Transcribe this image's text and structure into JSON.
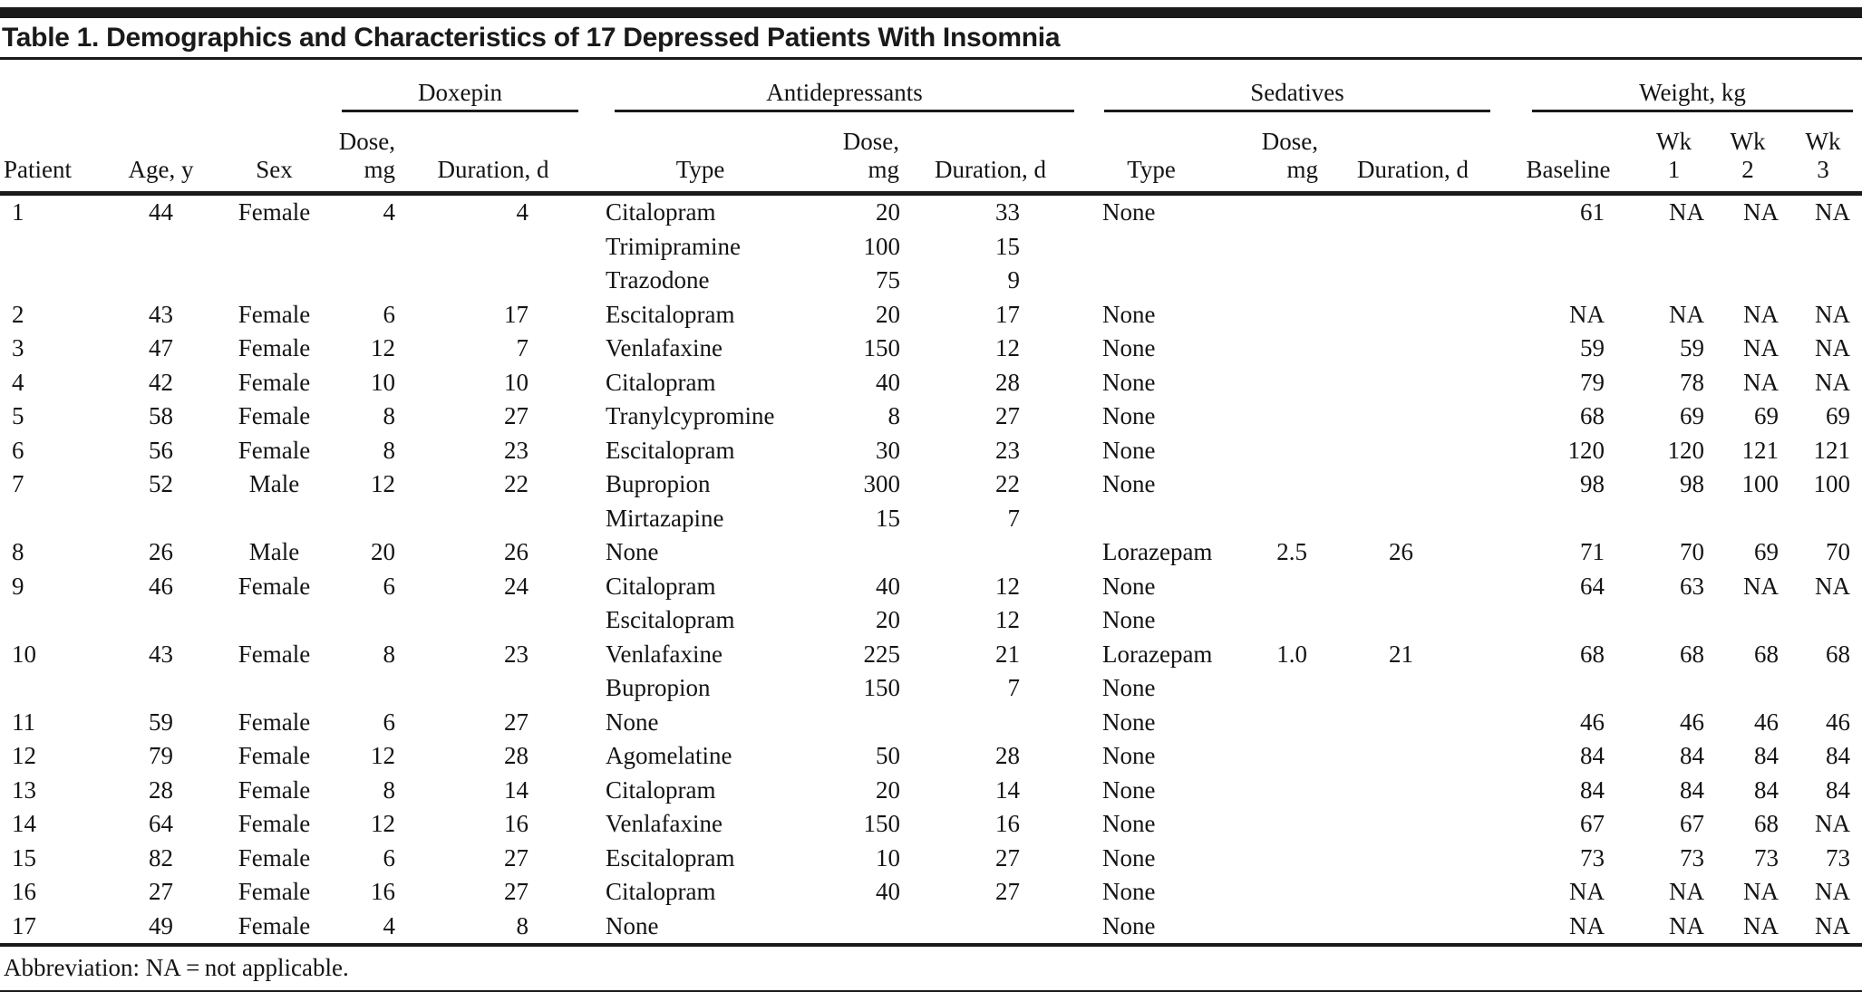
{
  "title": "Table 1. Demographics and Characteristics of 17 Depressed Patients With Insomnia",
  "footnote": "Abbreviation: NA = not applicable.",
  "colors": {
    "rule": "#1a1a1a",
    "text": "#141414"
  },
  "table": {
    "groups": [
      {
        "label": "",
        "span": 3
      },
      {
        "label": "Doxepin",
        "span": 2
      },
      {
        "label": "Antidepressants",
        "span": 3
      },
      {
        "label": "Sedatives",
        "span": 3
      },
      {
        "label": "Weight, kg",
        "span": 4
      }
    ],
    "columns": [
      "Patient",
      "Age, y",
      "Sex",
      "Dose,\nmg",
      "Duration, d",
      "Type",
      "Dose,\nmg",
      "Duration, d",
      "Type",
      "Dose,\nmg",
      "Duration, d",
      "Baseline",
      "Wk\n1",
      "Wk\n2",
      "Wk\n3"
    ],
    "rows": [
      [
        "1",
        "44",
        "Female",
        "4",
        "4",
        "Citalopram",
        "20",
        "33",
        "None",
        "",
        "",
        "61",
        "NA",
        "NA",
        "NA"
      ],
      [
        "",
        "",
        "",
        "",
        "",
        "Trimipramine",
        "100",
        "15",
        "",
        "",
        "",
        "",
        "",
        "",
        ""
      ],
      [
        "",
        "",
        "",
        "",
        "",
        "Trazodone",
        "75",
        "9",
        "",
        "",
        "",
        "",
        "",
        "",
        ""
      ],
      [
        "2",
        "43",
        "Female",
        "6",
        "17",
        "Escitalopram",
        "20",
        "17",
        "None",
        "",
        "",
        "NA",
        "NA",
        "NA",
        "NA"
      ],
      [
        "3",
        "47",
        "Female",
        "12",
        "7",
        "Venlafaxine",
        "150",
        "12",
        "None",
        "",
        "",
        "59",
        "59",
        "NA",
        "NA"
      ],
      [
        "4",
        "42",
        "Female",
        "10",
        "10",
        "Citalopram",
        "40",
        "28",
        "None",
        "",
        "",
        "79",
        "78",
        "NA",
        "NA"
      ],
      [
        "5",
        "58",
        "Female",
        "8",
        "27",
        "Tranylcypromine",
        "8",
        "27",
        "None",
        "",
        "",
        "68",
        "69",
        "69",
        "69"
      ],
      [
        "6",
        "56",
        "Female",
        "8",
        "23",
        "Escitalopram",
        "30",
        "23",
        "None",
        "",
        "",
        "120",
        "120",
        "121",
        "121"
      ],
      [
        "7",
        "52",
        "Male",
        "12",
        "22",
        "Bupropion",
        "300",
        "22",
        "None",
        "",
        "",
        "98",
        "98",
        "100",
        "100"
      ],
      [
        "",
        "",
        "",
        "",
        "",
        "Mirtazapine",
        "15",
        "7",
        "",
        "",
        "",
        "",
        "",
        "",
        ""
      ],
      [
        "8",
        "26",
        "Male",
        "20",
        "26",
        "None",
        "",
        "",
        "Lorazepam",
        "2.5",
        "26",
        "71",
        "70",
        "69",
        "70"
      ],
      [
        "9",
        "46",
        "Female",
        "6",
        "24",
        "Citalopram",
        "40",
        "12",
        "None",
        "",
        "",
        "64",
        "63",
        "NA",
        "NA"
      ],
      [
        "",
        "",
        "",
        "",
        "",
        "Escitalopram",
        "20",
        "12",
        "None",
        "",
        "",
        "",
        "",
        "",
        ""
      ],
      [
        "10",
        "43",
        "Female",
        "8",
        "23",
        "Venlafaxine",
        "225",
        "21",
        "Lorazepam",
        "1.0",
        "21",
        "68",
        "68",
        "68",
        "68"
      ],
      [
        "",
        "",
        "",
        "",
        "",
        "Bupropion",
        "150",
        "7",
        "None",
        "",
        "",
        "",
        "",
        "",
        ""
      ],
      [
        "11",
        "59",
        "Female",
        "6",
        "27",
        "None",
        "",
        "",
        "None",
        "",
        "",
        "46",
        "46",
        "46",
        "46"
      ],
      [
        "12",
        "79",
        "Female",
        "12",
        "28",
        "Agomelatine",
        "50",
        "28",
        "None",
        "",
        "",
        "84",
        "84",
        "84",
        "84"
      ],
      [
        "13",
        "28",
        "Female",
        "8",
        "14",
        "Citalopram",
        "20",
        "14",
        "None",
        "",
        "",
        "84",
        "84",
        "84",
        "84"
      ],
      [
        "14",
        "64",
        "Female",
        "12",
        "16",
        "Venlafaxine",
        "150",
        "16",
        "None",
        "",
        "",
        "67",
        "67",
        "68",
        "NA"
      ],
      [
        "15",
        "82",
        "Female",
        "6",
        "27",
        "Escitalopram",
        "10",
        "27",
        "None",
        "",
        "",
        "73",
        "73",
        "73",
        "73"
      ],
      [
        "16",
        "27",
        "Female",
        "16",
        "27",
        "Citalopram",
        "40",
        "27",
        "None",
        "",
        "",
        "NA",
        "NA",
        "NA",
        "NA"
      ],
      [
        "17",
        "49",
        "Female",
        "4",
        "8",
        "None",
        "",
        "",
        "None",
        "",
        "",
        "NA",
        "NA",
        "NA",
        "NA"
      ]
    ]
  }
}
